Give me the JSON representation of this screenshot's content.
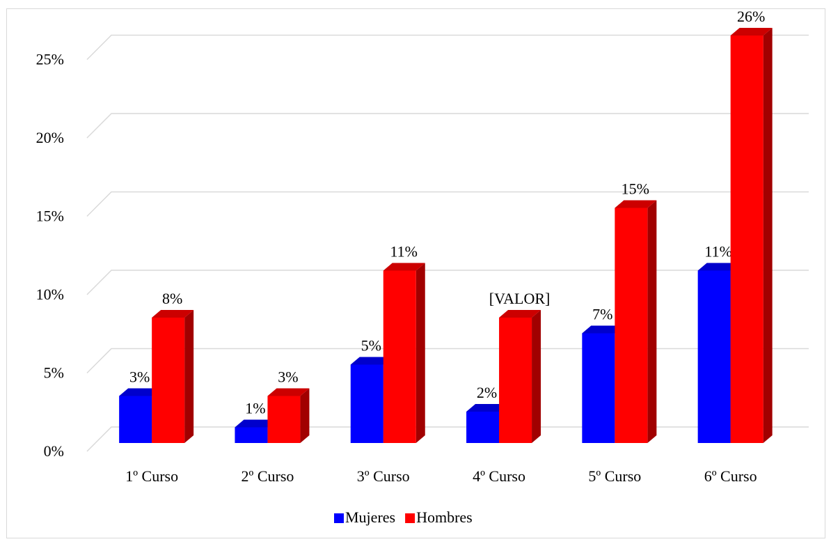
{
  "chart_data": {
    "type": "bar3d",
    "categories": [
      "1º Curso",
      "2º Curso",
      "3º Curso",
      "4º Curso",
      "5º Curso",
      "6º Curso"
    ],
    "series": [
      {
        "name": "Mujeres",
        "color": "#0000ff",
        "values": [
          3,
          1,
          5,
          2,
          7,
          11
        ],
        "value_labels": [
          "3%",
          "1%",
          "5%",
          "2%",
          "7%",
          "11%"
        ]
      },
      {
        "name": "Hombres",
        "color": "#ff0000",
        "values": [
          8,
          3,
          11,
          8,
          15,
          26
        ],
        "value_labels": [
          "8%",
          "3%",
          "11%",
          "[VALOR]",
          "15%",
          "26%"
        ]
      }
    ],
    "ylim": [
      0,
      25
    ],
    "yticks": [
      {
        "value": 0,
        "label": "0%"
      },
      {
        "value": 5,
        "label": "5%"
      },
      {
        "value": 10,
        "label": "10%"
      },
      {
        "value": 15,
        "label": "15%"
      },
      {
        "value": 20,
        "label": "20%"
      },
      {
        "value": 25,
        "label": "25%"
      }
    ],
    "grid": true,
    "legend": "bottom"
  }
}
